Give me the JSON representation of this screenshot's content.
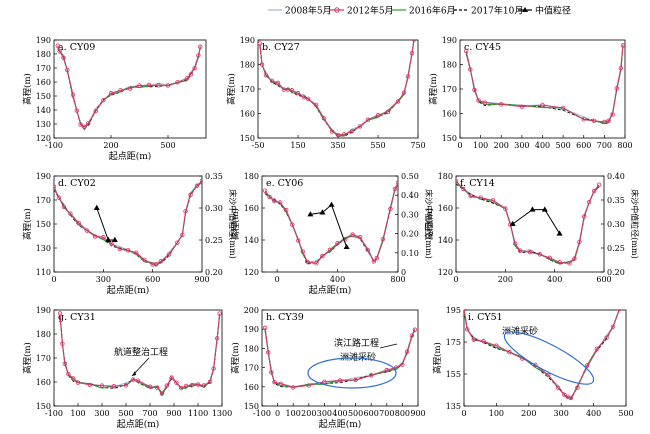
{
  "legend": [
    {
      "label": "2008年5月",
      "color": "#9fb8d6",
      "style": "solid",
      "marker": "none"
    },
    {
      "label": "2012年5月",
      "color": "#d6336c",
      "style": "solid",
      "marker": "circle"
    },
    {
      "label": "2016年6月",
      "color": "#2ca02c",
      "style": "solid",
      "marker": "none"
    },
    {
      "label": "2017年10月",
      "color": "#000000",
      "style": "dashed",
      "marker": "none"
    },
    {
      "label": "中值粒径",
      "color": "#000000",
      "style": "solid",
      "marker": "triangle"
    }
  ],
  "chart_data": [
    {
      "type": "line",
      "title": "a. CY09",
      "xlabel": "起点距(m)",
      "ylabel": "高程(m)",
      "xlim": [
        -100,
        700
      ],
      "ylim": [
        120,
        190
      ],
      "xticks": [
        -100,
        200,
        500
      ],
      "yticks": [
        120,
        130,
        140,
        150,
        160,
        170,
        180,
        190
      ],
      "profile": [
        [
          -80,
          185
        ],
        [
          -70,
          182
        ],
        [
          -50,
          178
        ],
        [
          -30,
          168
        ],
        [
          0,
          150
        ],
        [
          20,
          140
        ],
        [
          40,
          130
        ],
        [
          60,
          127
        ],
        [
          80,
          130
        ],
        [
          120,
          140
        ],
        [
          160,
          147
        ],
        [
          200,
          151
        ],
        [
          250,
          154
        ],
        [
          300,
          156
        ],
        [
          350,
          157
        ],
        [
          400,
          157
        ],
        [
          450,
          158
        ],
        [
          500,
          158
        ],
        [
          550,
          159
        ],
        [
          600,
          162
        ],
        [
          620,
          166
        ],
        [
          640,
          170
        ],
        [
          660,
          178
        ],
        [
          670,
          185
        ]
      ]
    },
    {
      "type": "line",
      "title": "b. CY27",
      "xlabel": "",
      "ylabel": "高程(m)",
      "xlim": [
        -50,
        750
      ],
      "ylim": [
        150,
        190
      ],
      "xticks": [
        -50,
        150,
        350,
        550,
        750
      ],
      "yticks": [
        150,
        160,
        170,
        180,
        190
      ],
      "profile": [
        [
          -40,
          188
        ],
        [
          -30,
          180
        ],
        [
          -10,
          176
        ],
        [
          20,
          173
        ],
        [
          50,
          172
        ],
        [
          80,
          170
        ],
        [
          100,
          170
        ],
        [
          120,
          169
        ],
        [
          150,
          168
        ],
        [
          180,
          167
        ],
        [
          200,
          166
        ],
        [
          240,
          163
        ],
        [
          280,
          158
        ],
        [
          320,
          153
        ],
        [
          350,
          151
        ],
        [
          380,
          151
        ],
        [
          420,
          153
        ],
        [
          460,
          155
        ],
        [
          500,
          157
        ],
        [
          550,
          159
        ],
        [
          600,
          161
        ],
        [
          650,
          165
        ],
        [
          680,
          168
        ],
        [
          700,
          175
        ],
        [
          720,
          185
        ],
        [
          730,
          190
        ]
      ]
    },
    {
      "type": "line",
      "title": "c. CY45",
      "xlabel": "",
      "ylabel": "高程(m)",
      "xlim": [
        0,
        800
      ],
      "ylim": [
        150,
        190
      ],
      "xticks": [
        0,
        100,
        200,
        300,
        400,
        500,
        600,
        700,
        800
      ],
      "yticks": [
        150,
        160,
        170,
        180,
        190
      ],
      "profile": [
        [
          30,
          185
        ],
        [
          50,
          178
        ],
        [
          70,
          170
        ],
        [
          90,
          165
        ],
        [
          120,
          164
        ],
        [
          200,
          164
        ],
        [
          300,
          163
        ],
        [
          400,
          163
        ],
        [
          500,
          162
        ],
        [
          600,
          158
        ],
        [
          650,
          157
        ],
        [
          700,
          156
        ],
        [
          720,
          157
        ],
        [
          740,
          160
        ],
        [
          760,
          170
        ],
        [
          780,
          178
        ],
        [
          790,
          188
        ]
      ]
    },
    {
      "type": "line",
      "title": "d. CY02",
      "xlabel": "起点距(m)",
      "ylabel": "高程(m)",
      "y2label": "床沙中值粒径(mm)",
      "xlim": [
        0,
        900
      ],
      "ylim": [
        110,
        190
      ],
      "y2lim": [
        0.2,
        0.35
      ],
      "xticks": [
        0,
        300,
        600,
        900
      ],
      "yticks": [
        110,
        130,
        150,
        170,
        190
      ],
      "y2ticks": [
        0.2,
        0.25,
        0.3,
        0.35
      ],
      "profile": [
        [
          0,
          180
        ],
        [
          30,
          172
        ],
        [
          60,
          165
        ],
        [
          100,
          158
        ],
        [
          150,
          150
        ],
        [
          200,
          145
        ],
        [
          250,
          140
        ],
        [
          300,
          138
        ],
        [
          350,
          133
        ],
        [
          400,
          130
        ],
        [
          450,
          128
        ],
        [
          500,
          125
        ],
        [
          550,
          120
        ],
        [
          600,
          117
        ],
        [
          620,
          116
        ],
        [
          650,
          118
        ],
        [
          700,
          125
        ],
        [
          750,
          135
        ],
        [
          780,
          140
        ],
        [
          800,
          160
        ],
        [
          830,
          175
        ],
        [
          870,
          182
        ],
        [
          900,
          185
        ]
      ],
      "grain": [
        [
          260,
          0.3
        ],
        [
          330,
          0.25
        ],
        [
          370,
          0.25
        ]
      ]
    },
    {
      "type": "line",
      "title": "e. CY06",
      "xlabel": "起点距(m)",
      "ylabel": "高程(m)",
      "y2label": "床沙中值粒径(mm)",
      "xlim": [
        -100,
        800
      ],
      "ylim": [
        120,
        180
      ],
      "y2lim": [
        0.0,
        0.5
      ],
      "xticks": [
        0,
        400,
        800
      ],
      "yticks": [
        120,
        140,
        160,
        180
      ],
      "y2ticks": [
        0.0,
        0.1,
        0.2,
        0.3,
        0.4,
        0.5
      ],
      "profile": [
        [
          -80,
          170
        ],
        [
          -50,
          167
        ],
        [
          -20,
          165
        ],
        [
          20,
          163
        ],
        [
          60,
          158
        ],
        [
          100,
          150
        ],
        [
          140,
          140
        ],
        [
          170,
          132
        ],
        [
          200,
          126
        ],
        [
          260,
          126
        ],
        [
          300,
          130
        ],
        [
          350,
          133
        ],
        [
          400,
          138
        ],
        [
          450,
          141
        ],
        [
          500,
          143
        ],
        [
          550,
          141
        ],
        [
          600,
          134
        ],
        [
          640,
          127
        ],
        [
          660,
          128
        ],
        [
          700,
          140
        ],
        [
          750,
          160
        ],
        [
          780,
          172
        ],
        [
          800,
          175
        ]
      ],
      "grain": [
        [
          220,
          0.3
        ],
        [
          300,
          0.31
        ],
        [
          360,
          0.35
        ],
        [
          460,
          0.13
        ]
      ]
    },
    {
      "type": "line",
      "title": "f. CY14",
      "xlabel": "",
      "ylabel": "高程(m)",
      "y2label": "床沙中值粒径(mm)",
      "xlim": [
        0,
        600
      ],
      "ylim": [
        120,
        180
      ],
      "y2lim": [
        0.2,
        0.4
      ],
      "xticks": [
        0,
        200,
        400,
        600
      ],
      "yticks": [
        120,
        140,
        160,
        180
      ],
      "y2ticks": [
        0.2,
        0.25,
        0.3,
        0.35,
        0.4
      ],
      "profile": [
        [
          0,
          176
        ],
        [
          30,
          172
        ],
        [
          60,
          168
        ],
        [
          100,
          166
        ],
        [
          150,
          164
        ],
        [
          200,
          160
        ],
        [
          220,
          150
        ],
        [
          240,
          137
        ],
        [
          260,
          133
        ],
        [
          300,
          133
        ],
        [
          340,
          131
        ],
        [
          380,
          128
        ],
        [
          420,
          126
        ],
        [
          460,
          126
        ],
        [
          480,
          128
        ],
        [
          500,
          138
        ],
        [
          520,
          155
        ],
        [
          540,
          164
        ],
        [
          560,
          170
        ],
        [
          580,
          174
        ]
      ],
      "grain": [
        [
          230,
          0.3
        ],
        [
          310,
          0.33
        ],
        [
          360,
          0.33
        ],
        [
          420,
          0.28
        ]
      ]
    },
    {
      "type": "line",
      "title": "g. CY31",
      "xlabel": "起点距(m)",
      "ylabel": "高程(m)",
      "xlim": [
        -100,
        1300
      ],
      "ylim": [
        150,
        190
      ],
      "xticks": [
        -100,
        100,
        300,
        500,
        700,
        900,
        1100,
        1300
      ],
      "yticks": [
        150,
        160,
        170,
        180,
        190
      ],
      "profile": [
        [
          -50,
          188
        ],
        [
          -30,
          176
        ],
        [
          -10,
          168
        ],
        [
          20,
          163
        ],
        [
          60,
          161
        ],
        [
          100,
          160
        ],
        [
          200,
          159
        ],
        [
          300,
          158
        ],
        [
          400,
          158
        ],
        [
          500,
          159
        ],
        [
          560,
          161
        ],
        [
          600,
          160
        ],
        [
          700,
          158
        ],
        [
          760,
          158
        ],
        [
          800,
          155
        ],
        [
          840,
          158
        ],
        [
          880,
          162
        ],
        [
          920,
          160
        ],
        [
          960,
          157
        ],
        [
          1000,
          158
        ],
        [
          1050,
          159
        ],
        [
          1100,
          159
        ],
        [
          1150,
          158
        ],
        [
          1200,
          160
        ],
        [
          1230,
          166
        ],
        [
          1260,
          178
        ],
        [
          1280,
          188
        ]
      ],
      "annotations": [
        {
          "text": "航道整治工程"
        }
      ]
    },
    {
      "type": "line",
      "title": "h. CY39",
      "xlabel": "起点距(m)",
      "ylabel": "高程(m)",
      "xlim": [
        -100,
        900
      ],
      "ylim": [
        150,
        200
      ],
      "xticks": [
        -100,
        0,
        100,
        200,
        300,
        400,
        500,
        600,
        700,
        800,
        900
      ],
      "yticks": [
        150,
        160,
        170,
        180,
        190,
        200
      ],
      "profile": [
        [
          -80,
          190
        ],
        [
          -60,
          178
        ],
        [
          -40,
          168
        ],
        [
          -20,
          162
        ],
        [
          20,
          161
        ],
        [
          100,
          160
        ],
        [
          200,
          161
        ],
        [
          300,
          162
        ],
        [
          400,
          163
        ],
        [
          500,
          164
        ],
        [
          600,
          166
        ],
        [
          700,
          168
        ],
        [
          760,
          170
        ],
        [
          800,
          172
        ],
        [
          830,
          178
        ],
        [
          860,
          186
        ],
        [
          880,
          190
        ]
      ],
      "annotations": [
        {
          "text": "滨江路工程"
        },
        {
          "text": "洲滩采砂"
        }
      ]
    },
    {
      "type": "line",
      "title": "i. CY51",
      "xlabel": "",
      "ylabel": "高程(m)",
      "xlim": [
        0,
        500
      ],
      "ylim": [
        135,
        195
      ],
      "xticks": [
        0,
        100,
        200,
        300,
        400,
        500
      ],
      "yticks": [
        135,
        155,
        175,
        195
      ],
      "profile": [
        [
          0,
          195
        ],
        [
          10,
          183
        ],
        [
          30,
          177
        ],
        [
          60,
          175
        ],
        [
          100,
          172
        ],
        [
          140,
          169
        ],
        [
          180,
          165
        ],
        [
          220,
          160
        ],
        [
          260,
          154
        ],
        [
          290,
          147
        ],
        [
          310,
          142
        ],
        [
          320,
          140
        ],
        [
          330,
          140
        ],
        [
          350,
          147
        ],
        [
          380,
          160
        ],
        [
          410,
          170
        ],
        [
          440,
          178
        ],
        [
          460,
          185
        ],
        [
          480,
          195
        ]
      ],
      "annotations": [
        {
          "text": "洲滩采砂"
        }
      ]
    }
  ]
}
